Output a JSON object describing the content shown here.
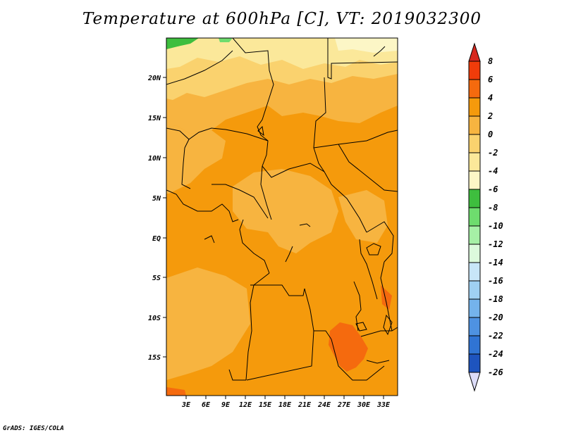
{
  "chart_data": {
    "type": "heatmap",
    "title": "Temperature at 600hPa [C], VT: 2019032300",
    "variable": "Temperature",
    "level": "600hPa",
    "units": "C",
    "valid_time": "2019032300",
    "x_ticks": [
      "3E",
      "6E",
      "9E",
      "12E",
      "15E",
      "18E",
      "21E",
      "24E",
      "27E",
      "30E",
      "33E"
    ],
    "y_ticks": [
      "20N",
      "15N",
      "10N",
      "5N",
      "EQ",
      "5S",
      "10S",
      "15S"
    ],
    "lon_range": [
      0,
      35
    ],
    "lat_range": [
      -20,
      24.5
    ],
    "colorbar": {
      "levels": [
        "8",
        "6",
        "4",
        "2",
        "0",
        "-2",
        "-4",
        "-6",
        "-8",
        "-10",
        "-12",
        "-14",
        "-16",
        "-18",
        "-20",
        "-22",
        "-24",
        "-26"
      ],
      "colors": [
        "#f03c0a",
        "#f56a0e",
        "#f59a0c",
        "#f7b440",
        "#fad26e",
        "#fbe89a",
        "#fcf6c6",
        "#3ebe3e",
        "#6edc6e",
        "#a6f0a6",
        "#dcfadc",
        "#c8e6f8",
        "#9fd0f2",
        "#74b3ec",
        "#4e92e2",
        "#3074d4",
        "#1e54be",
        "#123aa0",
        "#0a1a78"
      ],
      "over_color": "#d7281e",
      "under_color": "#dcdcf8"
    },
    "field_summary": "Most of the domain is 2 to 4 C; cooler 0 to -4 C north of about 15N with -6 to -4 C in the far north-west corner; a 4 to 6 C maximum near 27E 15S"
  },
  "credit": "GrADS: IGES/COLA"
}
